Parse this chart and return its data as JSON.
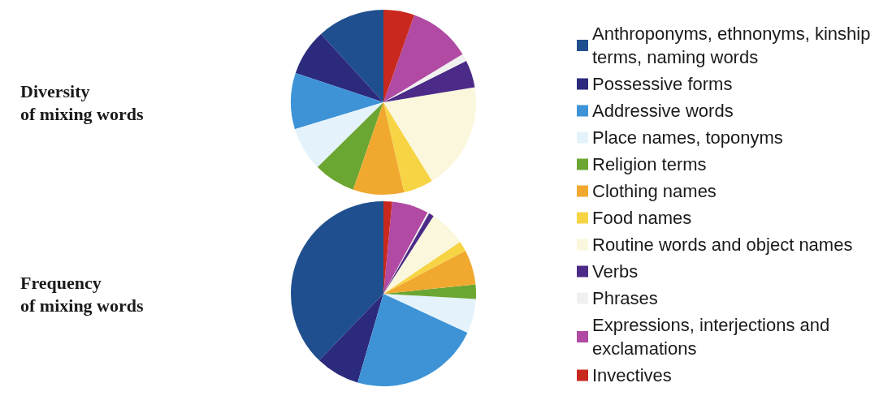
{
  "chart_data": {
    "type": "pie",
    "categories": [
      "Anthroponyms, ethnonyms, kinship terms, naming words",
      "Possessive forms",
      "Addressive words",
      "Place names, toponyms",
      "Religion terms",
      "Clothing names",
      "Food names",
      "Routine words and object names",
      "Verbs",
      "Phrases",
      "Expressions, interjections and exclamations",
      "Invectives"
    ],
    "colors": [
      "#1f4f8e",
      "#2b2a7c",
      "#3d93d6",
      "#e4f2fb",
      "#6ca632",
      "#f1a82f",
      "#f6d444",
      "#faf7dc",
      "#4c2a88",
      "#f0f0f0",
      "#b04aa2",
      "#c9281f"
    ],
    "series": [
      {
        "name": "Diversity of mixing words",
        "values": [
          11.8,
          8.1,
          9.8,
          7.7,
          7.3,
          8.9,
          5.2,
          18.8,
          4.8,
          1.3,
          10.9,
          5.4
        ]
      },
      {
        "name": "Frequency of mixing words",
        "values": [
          37.8,
          7.7,
          22.6,
          6.0,
          2.5,
          6.1,
          1.8,
          6.4,
          0.9,
          0.3,
          6.4,
          1.5
        ]
      }
    ],
    "legend": "right"
  }
}
